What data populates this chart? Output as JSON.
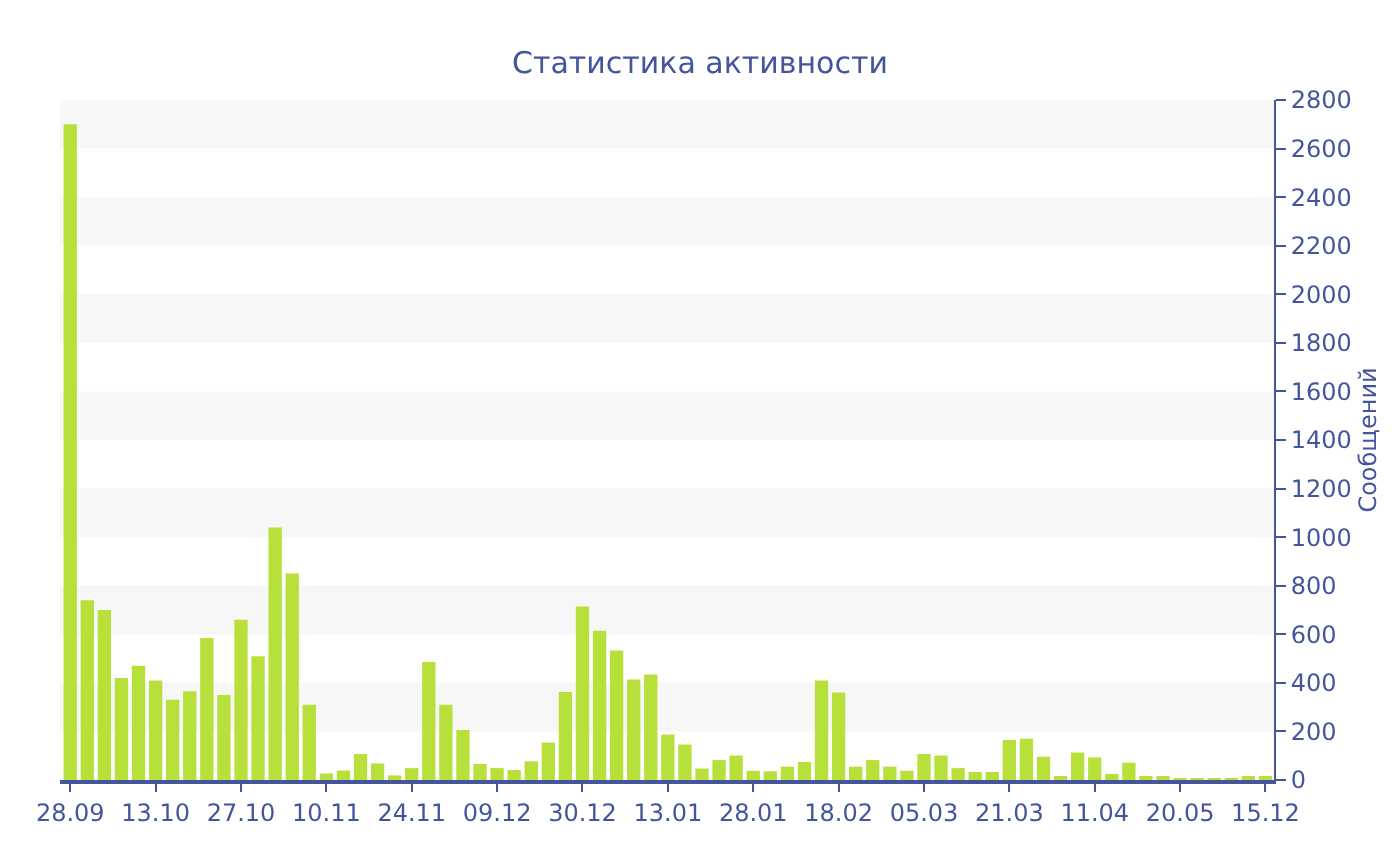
{
  "chart_data": {
    "type": "bar",
    "title": "Статистика активности",
    "ylabel": "Сообщений",
    "categories": [
      "28.09",
      null,
      null,
      null,
      null,
      "13.10",
      null,
      null,
      null,
      null,
      "27.10",
      null,
      null,
      null,
      null,
      "10.11",
      null,
      null,
      null,
      null,
      "24.11",
      null,
      null,
      null,
      null,
      "09.12",
      null,
      null,
      null,
      null,
      "30.12",
      null,
      null,
      null,
      null,
      "13.01",
      null,
      null,
      null,
      null,
      "28.01",
      null,
      null,
      null,
      null,
      "18.02",
      null,
      null,
      null,
      null,
      "05.03",
      null,
      null,
      null,
      null,
      "21.03",
      null,
      null,
      null,
      null,
      "11.04",
      null,
      null,
      null,
      null,
      "20.05",
      null,
      null,
      null,
      null,
      "15.12"
    ],
    "values": [
      2700,
      740,
      700,
      420,
      470,
      410,
      330,
      365,
      585,
      350,
      660,
      510,
      1040,
      850,
      310,
      27,
      39,
      107,
      68,
      19,
      49,
      486,
      310,
      206,
      66,
      49,
      41,
      77,
      154,
      362,
      714,
      615,
      533,
      414,
      434,
      187,
      146,
      47,
      82,
      101,
      38,
      36,
      55,
      74,
      410,
      360,
      55,
      82,
      55,
      38,
      107,
      101,
      49,
      33,
      33,
      165,
      170,
      96,
      16,
      113,
      93,
      25,
      71,
      11,
      16,
      8,
      8,
      8,
      8,
      10,
      10
    ],
    "color": "#b8e03a",
    "ylim": [
      0,
      2800
    ],
    "yticks": [
      0,
      200,
      400,
      600,
      800,
      1000,
      1200,
      1400,
      1600,
      1800,
      2000,
      2200,
      2400,
      2600,
      2800
    ],
    "bands": [
      {
        "axis": "y",
        "from": 200,
        "to": 400,
        "color": "#f7f7f7"
      },
      {
        "axis": "y",
        "from": 600,
        "to": 800,
        "color": "#f7f7f7"
      },
      {
        "axis": "y",
        "from": 1000,
        "to": 1200,
        "color": "#f7f7f7"
      },
      {
        "axis": "y",
        "from": 1400,
        "to": 1600,
        "color": "#f7f7f7"
      },
      {
        "axis": "y",
        "from": 1800,
        "to": 2000,
        "color": "#f7f7f7"
      },
      {
        "axis": "y",
        "from": 2200,
        "to": 2400,
        "color": "#f7f7f7"
      },
      {
        "axis": "y",
        "from": 2600,
        "to": 2800,
        "color": "#f7f7f7"
      }
    ],
    "legend": false
  }
}
